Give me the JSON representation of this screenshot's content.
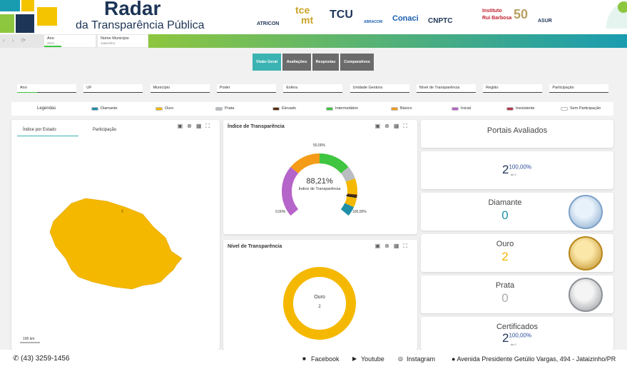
{
  "header": {
    "title": "Radar",
    "subtitle": "da Transparência Pública",
    "logos": [
      "ATRICON",
      "tce",
      "mt",
      "TCU",
      "ABRACOM",
      "Conaci",
      "CNPTC",
      "Instituto",
      "Rui Barbosa",
      "50",
      "ASUR"
    ]
  },
  "selectors": [
    {
      "label": "Ano",
      "value": "2024"
    },
    {
      "label": "Nome Município",
      "value": "Jataizinho"
    }
  ],
  "tabs": [
    "Visão Geral",
    "Avaliações",
    "Respostas",
    "Comparativos"
  ],
  "filters": [
    "Ano",
    "UF",
    "Município",
    "Poder",
    "Esfera",
    "Unidade Gestora",
    "Nível de Transparência",
    "Região",
    "Participação"
  ],
  "legend": {
    "title": "Legendas",
    "items": [
      {
        "label": "Diamante",
        "color": "#1f8fa8"
      },
      {
        "label": "Ouro",
        "color": "#f5b800"
      },
      {
        "label": "Prata",
        "color": "#b9bcc0"
      },
      {
        "label": "Elevado",
        "color": "#5a2d0c"
      },
      {
        "label": "Intermediário",
        "color": "#3fc53f"
      },
      {
        "label": "Básico",
        "color": "#f49b18"
      },
      {
        "label": "Inicial",
        "color": "#b564c9"
      },
      {
        "label": "Inexistente",
        "color": "#b23b4e"
      },
      {
        "label": "Sem Participação",
        "color": "#ffffff"
      }
    ]
  },
  "map_panel": {
    "tabs": [
      "Índice por Estado",
      "Participação"
    ],
    "region_label": "6",
    "scale": "100 km"
  },
  "index_panel": {
    "title": "Índice de Transparência",
    "value": "88,21%",
    "caption": "Índice de Transparência",
    "mid_label": "50,00%",
    "min_label": "0,00%",
    "max_label": "100,00%"
  },
  "level_panel": {
    "title": "Nível de Transparência",
    "label": "Ouro",
    "value": "2"
  },
  "summary": {
    "title": "Portais Avaliados",
    "value": "2",
    "percent": "100,00%",
    "of": "de 2"
  },
  "levels": [
    {
      "name": "Diamante",
      "value": "0",
      "color": "#1f8fa8"
    },
    {
      "name": "Ouro",
      "value": "2",
      "color": "#f5b800"
    },
    {
      "name": "Prata",
      "value": "0",
      "color": "#a9adb2"
    }
  ],
  "certified": {
    "title": "Certificados",
    "value": "2",
    "percent": "100,00%",
    "of": "de 2"
  },
  "footer": {
    "phone": "(43) 3259-1456",
    "social": [
      "Facebook",
      "Youtube",
      "Instagram"
    ],
    "address": "Avenida Presidente Getúlio Vargas, 494 - Jataizinho/PR"
  }
}
